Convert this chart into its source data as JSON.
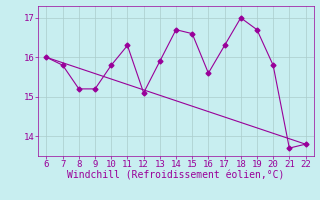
{
  "x": [
    6,
    7,
    8,
    9,
    10,
    11,
    12,
    13,
    14,
    15,
    16,
    17,
    18,
    19,
    20,
    21,
    22
  ],
  "y": [
    16.0,
    15.8,
    15.2,
    15.2,
    15.8,
    16.3,
    15.1,
    15.9,
    16.7,
    16.6,
    15.6,
    16.3,
    17.0,
    16.7,
    15.8,
    13.7,
    13.8
  ],
  "trend_x": [
    6,
    22
  ],
  "trend_y": [
    16.0,
    13.8
  ],
  "line_color": "#990099",
  "marker": "D",
  "marker_size": 2.5,
  "bg_color": "#c8eef0",
  "grid_color": "#aacccc",
  "xlabel": "Windchill (Refroidissement éolien,°C)",
  "xlim": [
    5.5,
    22.5
  ],
  "ylim": [
    13.5,
    17.3
  ],
  "yticks": [
    14,
    15,
    16,
    17
  ],
  "xticks": [
    6,
    7,
    8,
    9,
    10,
    11,
    12,
    13,
    14,
    15,
    16,
    17,
    18,
    19,
    20,
    21,
    22
  ],
  "font_color": "#990099",
  "tick_fontsize": 6.5,
  "xlabel_fontsize": 7.0
}
